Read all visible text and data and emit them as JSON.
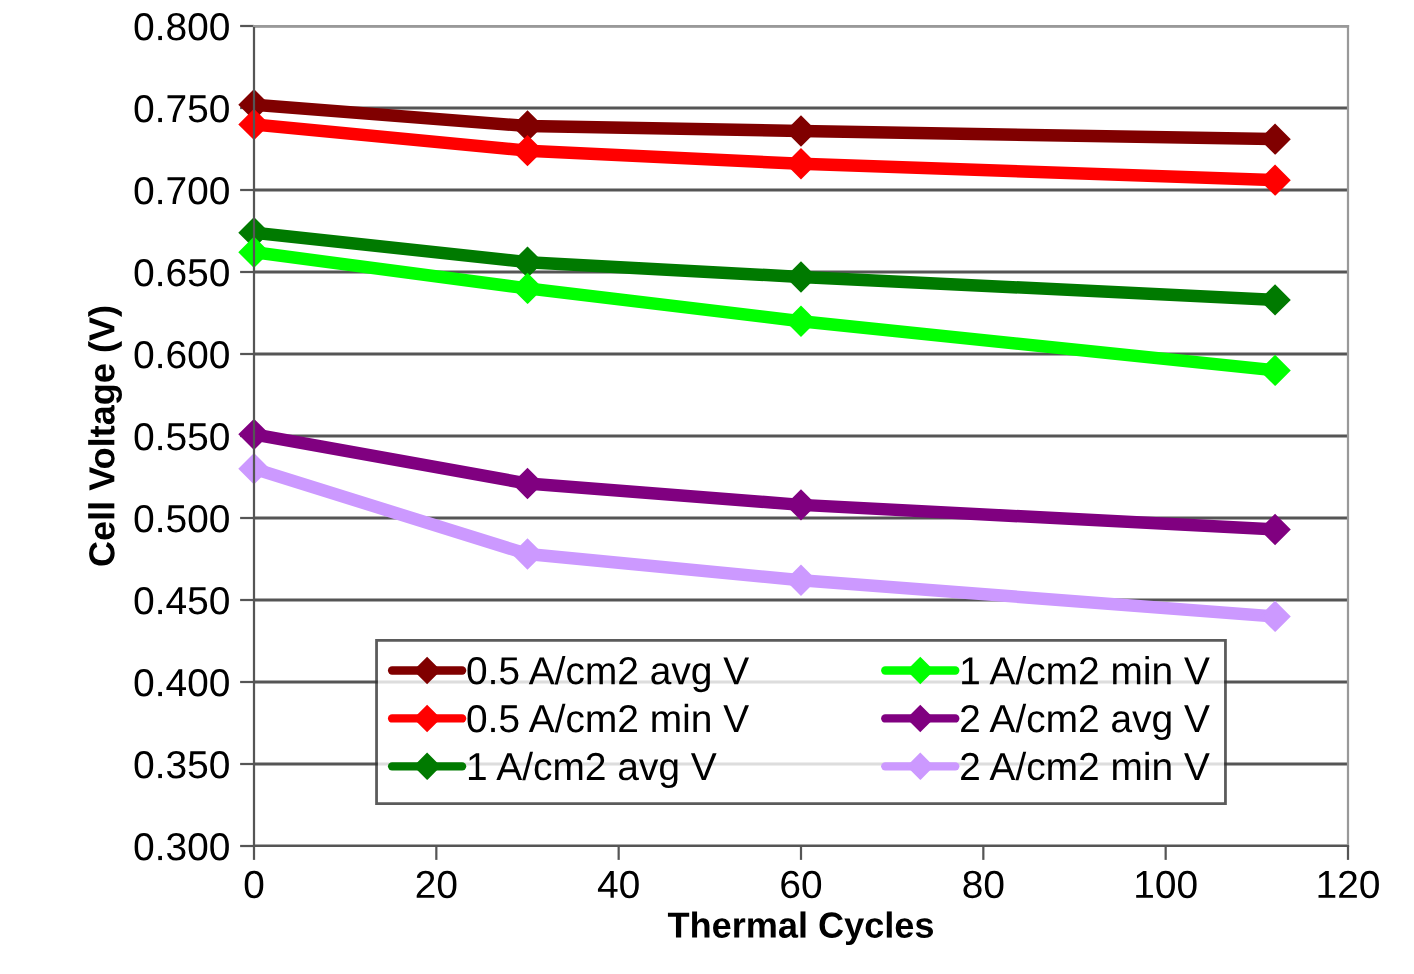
{
  "chart_data": {
    "type": "line",
    "xlabel": "Thermal Cycles",
    "ylabel": "Cell Voltage (V)",
    "x": [
      0,
      30,
      60,
      112
    ],
    "series": [
      {
        "name": "0.5 A/cm2 avg V",
        "color": "#800000",
        "values": [
          0.752,
          0.739,
          0.736,
          0.731
        ]
      },
      {
        "name": "0.5 A/cm2 min V",
        "color": "#ff0000",
        "values": [
          0.74,
          0.724,
          0.716,
          0.706
        ]
      },
      {
        "name": "1 A/cm2 avg V",
        "color": "#007a00",
        "values": [
          0.674,
          0.656,
          0.647,
          0.633
        ]
      },
      {
        "name": "1 A/cm2 min V",
        "color": "#00ff00",
        "values": [
          0.662,
          0.64,
          0.62,
          0.59
        ]
      },
      {
        "name": "2 A/cm2 avg V",
        "color": "#800080",
        "values": [
          0.551,
          0.521,
          0.508,
          0.493
        ]
      },
      {
        "name": "2 A/cm2 min V",
        "color": "#cc99ff",
        "values": [
          0.53,
          0.478,
          0.462,
          0.44
        ]
      }
    ],
    "xlim": [
      0,
      120
    ],
    "xticks": [
      0,
      20,
      40,
      60,
      80,
      100,
      120
    ],
    "ylim": [
      0.3,
      0.8
    ],
    "yticks": [
      {
        "value": 0.3,
        "label": "0.300"
      },
      {
        "value": 0.35,
        "label": "0.350"
      },
      {
        "value": 0.4,
        "label": "0.400"
      },
      {
        "value": 0.45,
        "label": "0.450"
      },
      {
        "value": 0.5,
        "label": "0.500"
      },
      {
        "value": 0.55,
        "label": "0.550"
      },
      {
        "value": 0.6,
        "label": "0.600"
      },
      {
        "value": 0.65,
        "label": "0.650"
      },
      {
        "value": 0.7,
        "label": "0.700"
      },
      {
        "value": 0.75,
        "label": "0.750"
      },
      {
        "value": 0.8,
        "label": "0.800"
      }
    ],
    "grid": "y",
    "legend": "bottom",
    "marker": "diamond",
    "line_style": "solid"
  }
}
